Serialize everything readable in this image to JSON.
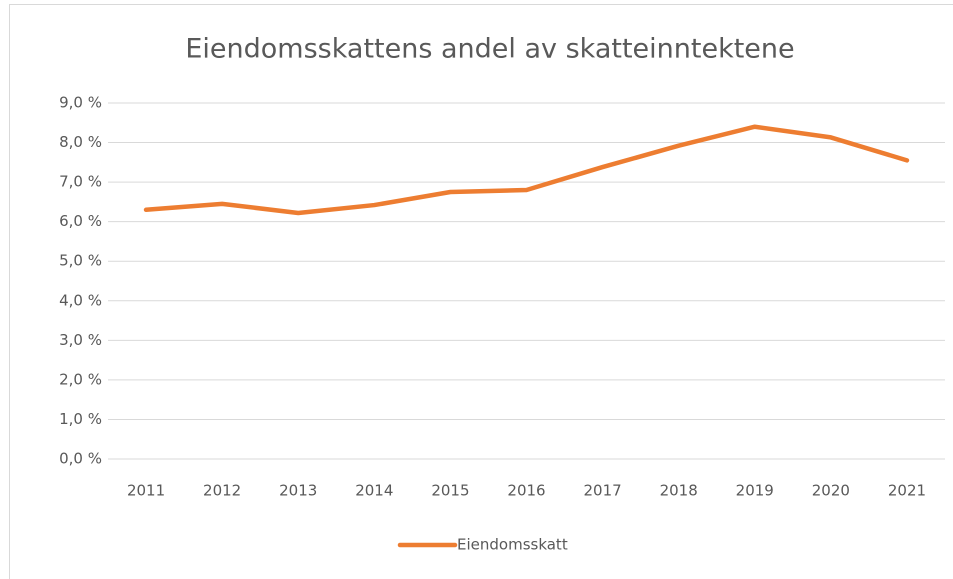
{
  "chart_data": {
    "type": "line",
    "title": "Eiendomsskattens andel av skatteinntektene",
    "categories": [
      "2011",
      "2012",
      "2013",
      "2014",
      "2015",
      "2016",
      "2017",
      "2018",
      "2019",
      "2020",
      "2021"
    ],
    "series": [
      {
        "name": "Eiendomsskatt",
        "color": "#ed7d31",
        "values": [
          6.3,
          6.45,
          6.22,
          6.42,
          6.75,
          6.8,
          7.38,
          7.92,
          8.4,
          8.13,
          7.55
        ]
      }
    ],
    "ylim": [
      0,
      9
    ],
    "yticks": [
      {
        "value": 0,
        "label": "0,0 %"
      },
      {
        "value": 1,
        "label": "1,0 %"
      },
      {
        "value": 2,
        "label": "2,0 %"
      },
      {
        "value": 3,
        "label": "3,0 %"
      },
      {
        "value": 4,
        "label": "4,0 %"
      },
      {
        "value": 5,
        "label": "5,0 %"
      },
      {
        "value": 6,
        "label": "6,0 %"
      },
      {
        "value": 7,
        "label": "7,0 %"
      },
      {
        "value": 8,
        "label": "8,0 %"
      },
      {
        "value": 9,
        "label": "9,0 %"
      }
    ],
    "grid": true,
    "legend": "bottom"
  }
}
